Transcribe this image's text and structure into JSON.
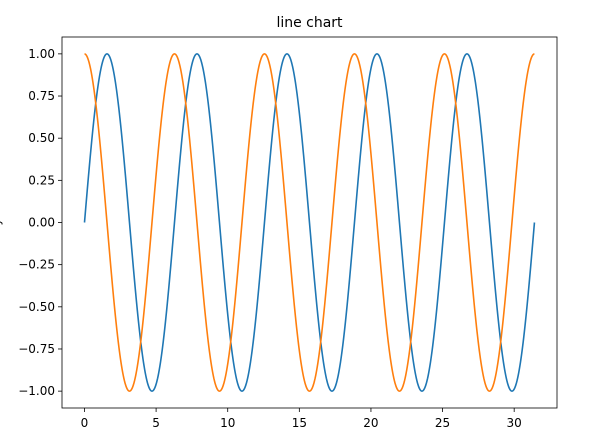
{
  "chart_data": {
    "type": "line",
    "title": "line chart",
    "xlabel": "",
    "ylabel": "y",
    "xlim": [
      -1.57,
      32.99
    ],
    "ylim": [
      -1.1,
      1.1
    ],
    "grid": false,
    "xticks": [
      0,
      5,
      10,
      15,
      20,
      25,
      30
    ],
    "xtick_labels": [
      "0",
      "5",
      "10",
      "15",
      "20",
      "25",
      "30"
    ],
    "yticks": [
      -1.0,
      -0.75,
      -0.5,
      -0.25,
      0.0,
      0.25,
      0.5,
      0.75,
      1.0
    ],
    "ytick_labels": [
      "−1.00",
      "−0.75",
      "−0.50",
      "−0.25",
      "0.00",
      "0.25",
      "0.50",
      "0.75",
      "1.00"
    ],
    "x_range": [
      0,
      31.4159
    ],
    "series": [
      {
        "function": "sin",
        "color": "#1f77b4",
        "x": [
          0,
          0.7854,
          1.5708,
          2.3562,
          3.1416,
          3.927,
          4.7124,
          5.4978,
          6.2832,
          7.0686,
          7.854,
          8.6394,
          9.4248,
          10.2102,
          10.9956,
          11.781,
          12.5664,
          13.3518,
          14.1372,
          14.9226,
          15.708,
          16.4934,
          17.2788,
          18.0642,
          18.8496,
          19.635,
          20.4204,
          21.2058,
          21.9911,
          22.7765,
          23.5619,
          24.3473,
          25.1327,
          25.9181,
          26.7035,
          27.4889,
          28.2743,
          29.0597,
          29.8451,
          30.6305,
          31.4159
        ],
        "values": [
          0,
          0.7071,
          1,
          0.7071,
          0,
          -0.7071,
          -1,
          -0.7071,
          0,
          0.7071,
          1,
          0.7071,
          0,
          -0.7071,
          -1,
          -0.7071,
          0,
          0.7071,
          1,
          0.7071,
          0,
          -0.7071,
          -1,
          -0.7071,
          0,
          0.7071,
          1,
          0.7071,
          0,
          -0.7071,
          -1,
          -0.7071,
          0,
          0.7071,
          1,
          0.7071,
          0,
          -0.7071,
          -1,
          -0.7071,
          0
        ]
      },
      {
        "function": "cos",
        "color": "#ff7f0e",
        "x": [
          0,
          0.7854,
          1.5708,
          2.3562,
          3.1416,
          3.927,
          4.7124,
          5.4978,
          6.2832,
          7.0686,
          7.854,
          8.6394,
          9.4248,
          10.2102,
          10.9956,
          11.781,
          12.5664,
          13.3518,
          14.1372,
          14.9226,
          15.708,
          16.4934,
          17.2788,
          18.0642,
          18.8496,
          19.635,
          20.4204,
          21.2058,
          21.9911,
          22.7765,
          23.5619,
          24.3473,
          25.1327,
          25.9181,
          26.7035,
          27.4889,
          28.2743,
          29.0597,
          29.8451,
          30.6305,
          31.4159
        ],
        "values": [
          1,
          0.7071,
          0,
          -0.7071,
          -1,
          -0.7071,
          0,
          0.7071,
          1,
          0.7071,
          0,
          -0.7071,
          -1,
          -0.7071,
          0,
          0.7071,
          1,
          0.7071,
          0,
          -0.7071,
          -1,
          -0.7071,
          0,
          0.7071,
          1,
          0.7071,
          0,
          -0.7071,
          -1,
          -0.7071,
          0,
          0.7071,
          1,
          0.7071,
          0,
          -0.7071,
          -1,
          -0.7071,
          0,
          0.7071,
          1
        ]
      }
    ]
  }
}
